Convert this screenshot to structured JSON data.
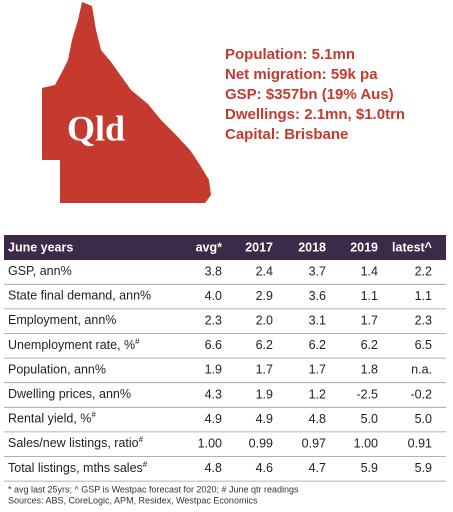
{
  "map_label": "Qld",
  "stats": [
    {
      "label": "Population:",
      "value": "5.1mn"
    },
    {
      "label": "Net migration:",
      "value": "59k pa"
    },
    {
      "label": "GSP:",
      "value": "$357bn (19% Aus)"
    },
    {
      "label": "Dwellings:",
      "value": "2.1mn, $1.0trn"
    },
    {
      "label": "Capital:",
      "value": "Brisbane"
    }
  ],
  "table": {
    "header": [
      "June years",
      "avg*",
      "2017",
      "2018",
      "2019",
      "latest^"
    ],
    "rows": [
      {
        "label": "GSP, ann%",
        "cells": [
          "3.8",
          "2.4",
          "3.7",
          "1.4",
          "2.2"
        ]
      },
      {
        "label": "State final demand, ann%",
        "cells": [
          "4.0",
          "2.9",
          "3.6",
          "1.1",
          "1.1"
        ]
      },
      {
        "label": "Employment, ann%",
        "cells": [
          "2.3",
          "2.0",
          "3.1",
          "1.7",
          "2.3"
        ]
      },
      {
        "label": "Unemployment rate, %",
        "note": "#",
        "cells": [
          "6.6",
          "6.2",
          "6.2",
          "6.2",
          "6.5"
        ]
      },
      {
        "label": "Population, ann%",
        "cells": [
          "1.9",
          "1.7",
          "1.7",
          "1.8",
          "n.a."
        ]
      },
      {
        "label": "Dwelling prices, ann%",
        "cells": [
          "4.3",
          "1.9",
          "1.2",
          "-2.5",
          "-0.2"
        ]
      },
      {
        "label": "Rental yield, %",
        "note": "#",
        "cells": [
          "4.9",
          "4.9",
          "4.8",
          "5.0",
          "5.0"
        ]
      },
      {
        "label": "Sales/new listings, ratio",
        "note": "#",
        "cells": [
          "1.00",
          "0.99",
          "0.97",
          "1.00",
          "0.91"
        ]
      },
      {
        "label": "Total listings, mths sales",
        "note": "#",
        "cells": [
          "4.8",
          "4.6",
          "4.7",
          "5.9",
          "5.9"
        ]
      }
    ]
  },
  "footnotes": [
    "* avg last 25yrs; ^ GSP is Westpac forecast for 2020; # June qtr readings",
    "Sources: ABS, CoreLogic, APM, Residex, Westpac Economics"
  ]
}
